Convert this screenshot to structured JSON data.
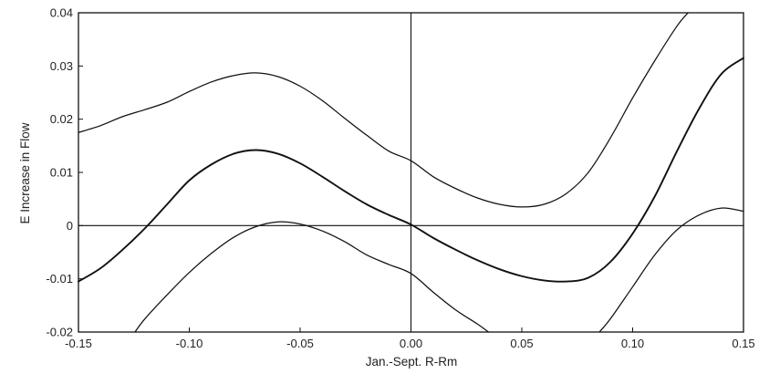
{
  "chart_data": {
    "type": "line",
    "title": "",
    "xlabel": "Jan.-Sept. R-Rm",
    "ylabel": "E Increase in Flow",
    "xlim": [
      -0.15,
      0.15
    ],
    "ylim": [
      -0.02,
      0.04
    ],
    "x_ticks": [
      "-0.15",
      "-0.10",
      "-0.05",
      "0.00",
      "0.05",
      "0.10",
      "0.15"
    ],
    "y_ticks": [
      "-0.02",
      "-0.01",
      "0",
      "0.01",
      "0.02",
      "0.03",
      "0.04"
    ],
    "grid": false,
    "reference_lines": {
      "x": 0,
      "y": 0
    },
    "series": [
      {
        "role": "upper-band",
        "x": [
          -0.15,
          -0.14,
          -0.13,
          -0.12,
          -0.11,
          -0.1,
          -0.09,
          -0.08,
          -0.07,
          -0.06,
          -0.05,
          -0.04,
          -0.03,
          -0.02,
          -0.01,
          0.0,
          0.01,
          0.02,
          0.03,
          0.04,
          0.05,
          0.06,
          0.07,
          0.08,
          0.09,
          0.1,
          0.11,
          0.12,
          0.125
        ],
        "y": [
          0.0175,
          0.0188,
          0.0205,
          0.0218,
          0.0232,
          0.0252,
          0.027,
          0.0282,
          0.0287,
          0.028,
          0.0262,
          0.0235,
          0.0202,
          0.017,
          0.014,
          0.0122,
          0.0092,
          0.007,
          0.0052,
          0.004,
          0.0035,
          0.004,
          0.006,
          0.01,
          0.0165,
          0.024,
          0.031,
          0.0375,
          0.04
        ]
      },
      {
        "role": "estimate",
        "x": [
          -0.15,
          -0.14,
          -0.13,
          -0.12,
          -0.11,
          -0.1,
          -0.09,
          -0.08,
          -0.07,
          -0.06,
          -0.05,
          -0.04,
          -0.03,
          -0.02,
          -0.01,
          0.0,
          0.01,
          0.02,
          0.03,
          0.04,
          0.05,
          0.06,
          0.07,
          0.08,
          0.09,
          0.1,
          0.11,
          0.12,
          0.13,
          0.14,
          0.15
        ],
        "y": [
          -0.0105,
          -0.008,
          -0.0045,
          -0.0005,
          0.004,
          0.0085,
          0.0115,
          0.0135,
          0.0142,
          0.0135,
          0.0117,
          0.0092,
          0.0065,
          0.004,
          0.002,
          0.0002,
          -0.0023,
          -0.0045,
          -0.0065,
          -0.0082,
          -0.0095,
          -0.0103,
          -0.0105,
          -0.0098,
          -0.0068,
          -0.0015,
          0.0055,
          0.014,
          0.022,
          0.0285,
          0.0315
        ]
      },
      {
        "role": "lower-band",
        "x": [
          -0.1245,
          -0.12,
          -0.11,
          -0.1,
          -0.09,
          -0.08,
          -0.07,
          -0.06,
          -0.05,
          -0.04,
          -0.03,
          -0.02,
          -0.01,
          0.0,
          0.01,
          0.02,
          0.03,
          0.035
        ],
        "y": [
          -0.02,
          -0.0175,
          -0.013,
          -0.0088,
          -0.0052,
          -0.0022,
          -0.0002,
          0.0007,
          0.0003,
          -0.001,
          -0.003,
          -0.0055,
          -0.0073,
          -0.009,
          -0.0125,
          -0.0158,
          -0.0185,
          -0.02
        ]
      },
      {
        "role": "lower-band",
        "x": [
          0.085,
          0.09,
          0.1,
          0.11,
          0.12,
          0.13,
          0.14,
          0.15
        ],
        "y": [
          -0.02,
          -0.0175,
          -0.0115,
          -0.0055,
          -0.0008,
          0.002,
          0.0033,
          0.0027
        ]
      }
    ]
  }
}
